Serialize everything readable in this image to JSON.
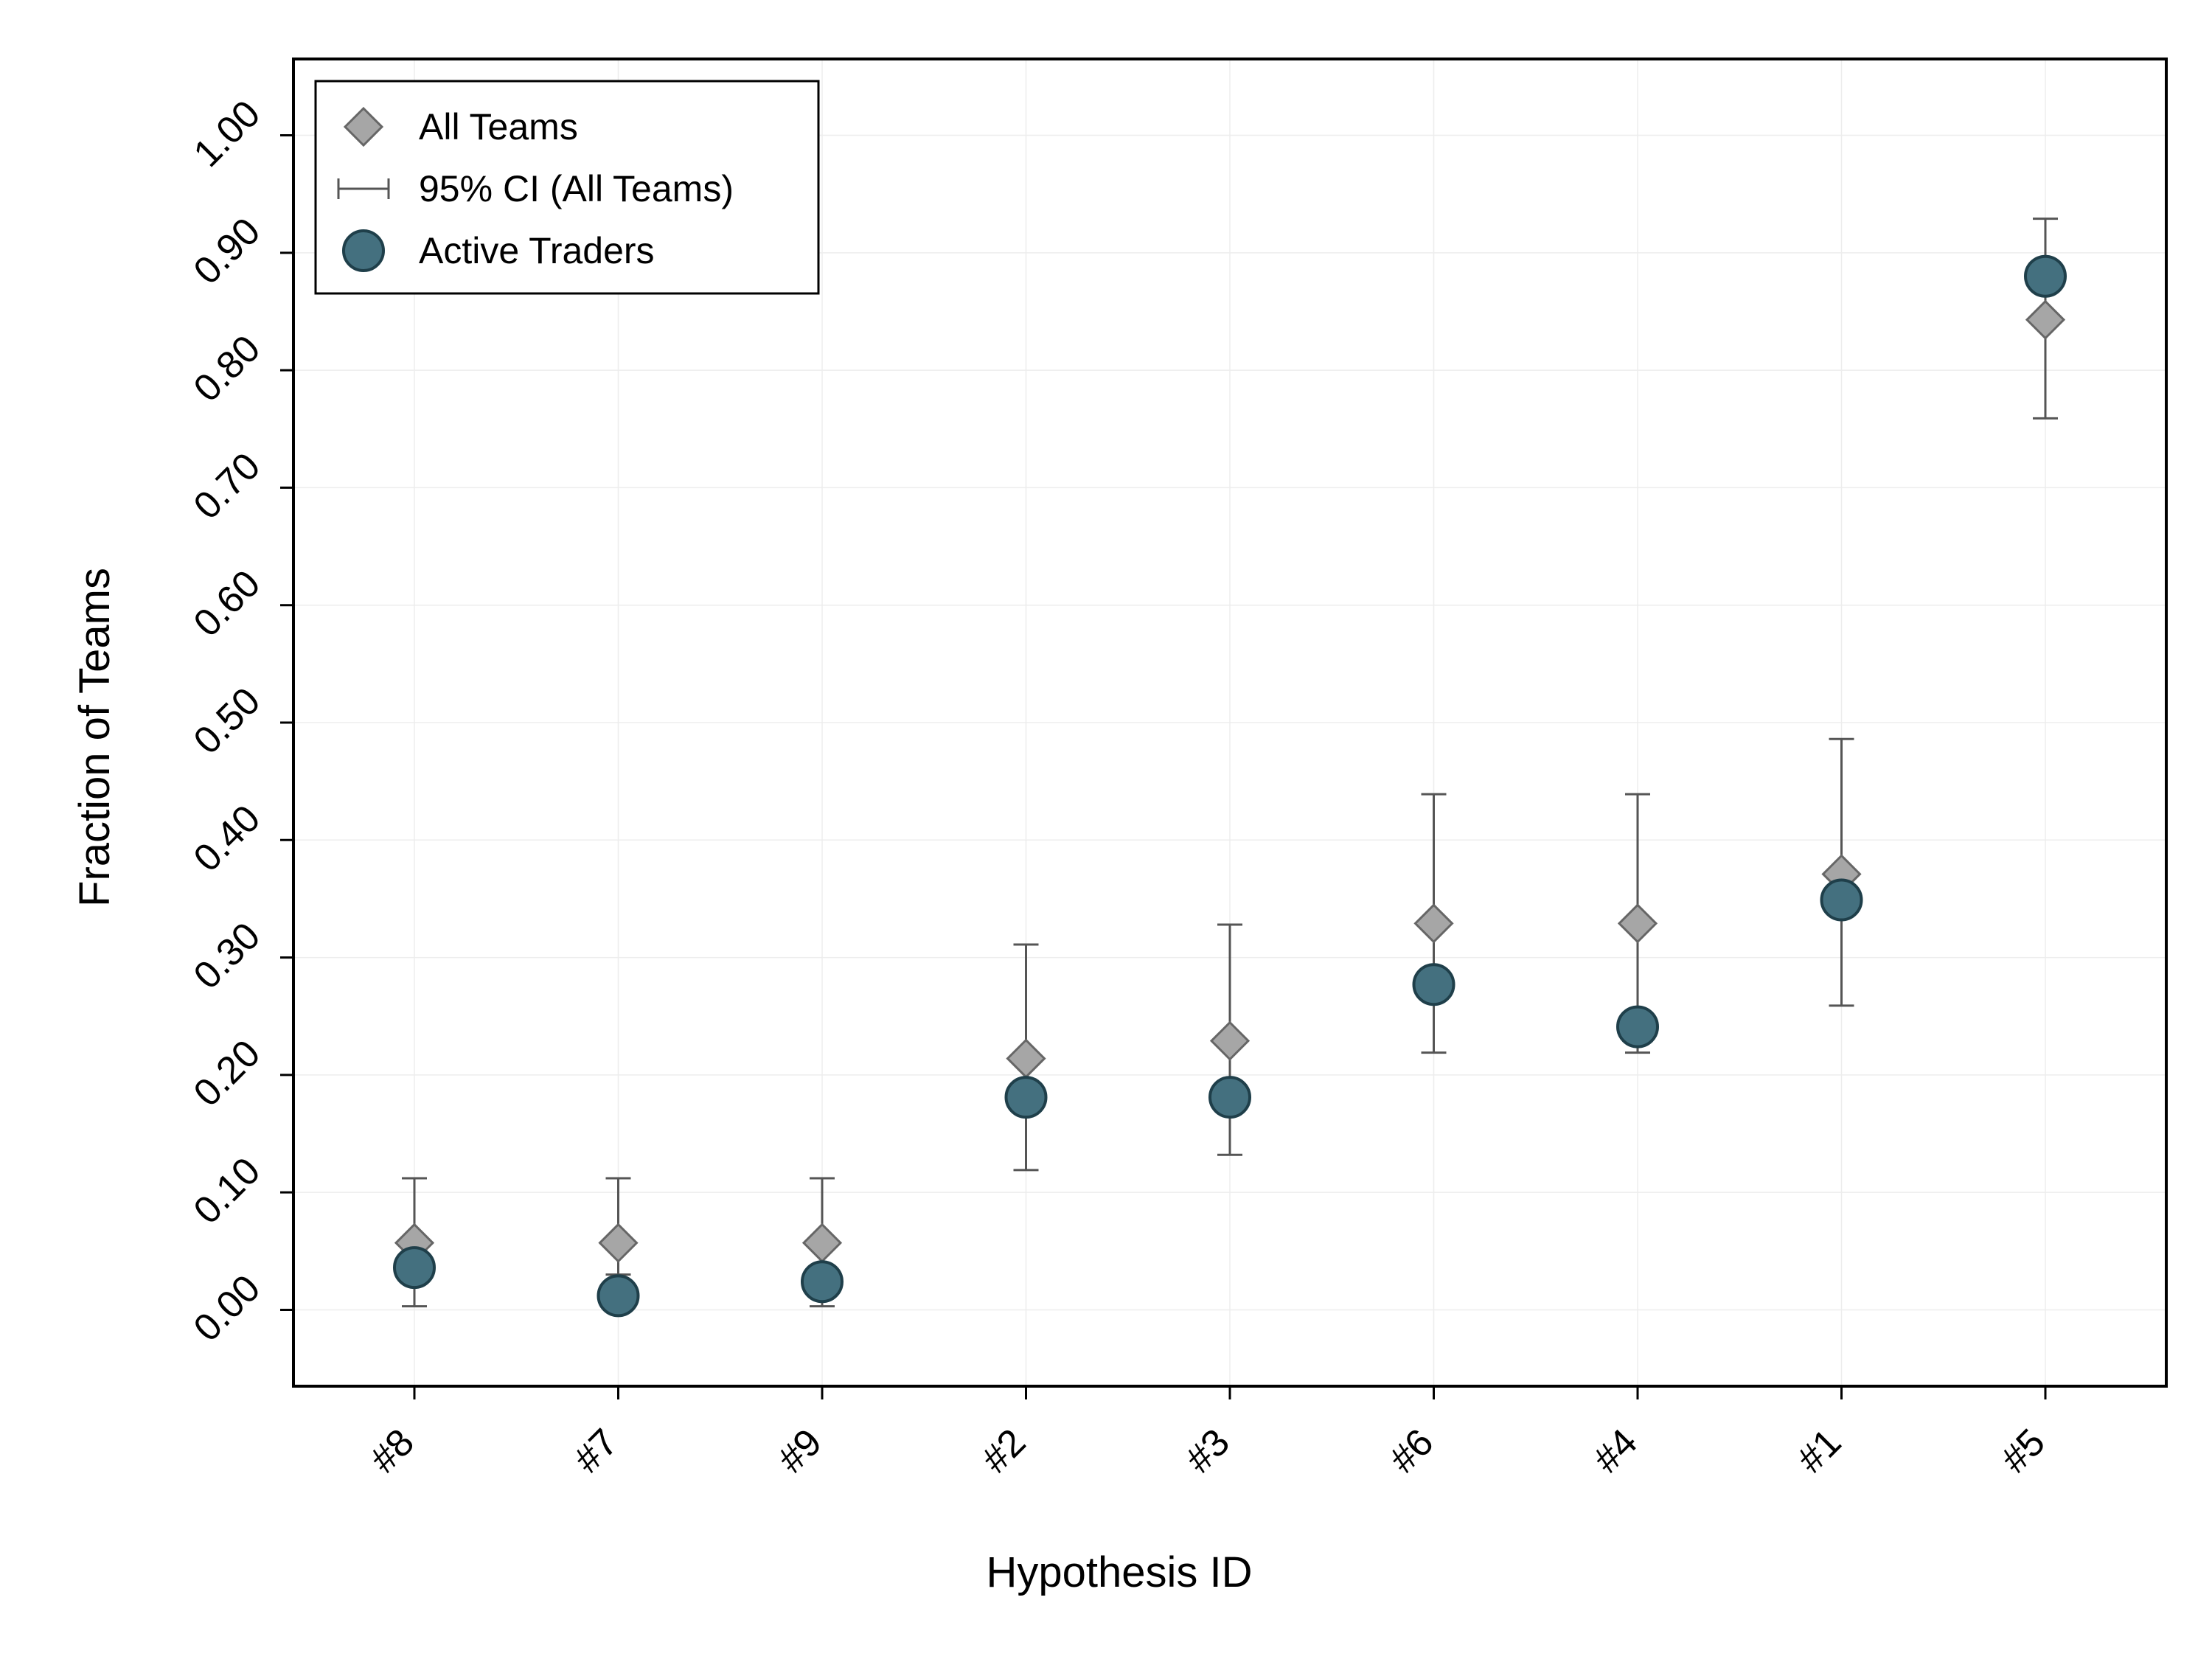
{
  "chart_data": {
    "type": "scatter",
    "categories": [
      "#8",
      "#7",
      "#9",
      "#2",
      "#3",
      "#6",
      "#4",
      "#1",
      "#5"
    ],
    "xlabel": "Hypothesis ID",
    "ylabel": "Fraction of Teams",
    "ylim": [
      -0.065,
      1.065
    ],
    "yticks": [
      "0.00",
      "0.10",
      "0.20",
      "0.30",
      "0.40",
      "0.50",
      "0.60",
      "0.70",
      "0.80",
      "0.90",
      "1.00"
    ],
    "grid": true,
    "legend_position": "top-left",
    "legend": {
      "all_teams": "All Teams",
      "ci": "95% CI (All Teams)",
      "active_traders": "Active Traders"
    },
    "series": [
      {
        "name": "All Teams",
        "marker": "diamond",
        "color": "#a6a6a6",
        "values": [
          0.057,
          0.057,
          0.057,
          0.214,
          0.229,
          0.329,
          0.329,
          0.371,
          0.843
        ],
        "ci_low": [
          0.003,
          0.03,
          0.003,
          0.119,
          0.132,
          0.219,
          0.219,
          0.259,
          0.759
        ],
        "ci_high": [
          0.112,
          0.112,
          0.112,
          0.311,
          0.328,
          0.439,
          0.439,
          0.486,
          0.929
        ]
      },
      {
        "name": "Active Traders",
        "marker": "circle",
        "color": "#44707f",
        "values": [
          0.036,
          0.012,
          0.024,
          0.181,
          0.181,
          0.277,
          0.241,
          0.349,
          0.88
        ]
      }
    ]
  }
}
